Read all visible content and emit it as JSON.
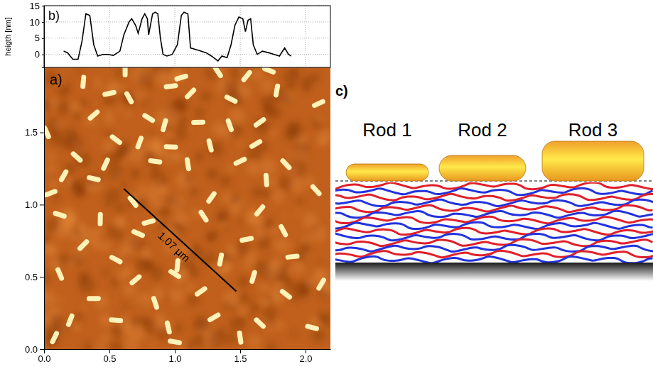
{
  "chart_data": [
    {
      "type": "scatter",
      "marker": "rod",
      "label": "a)",
      "color": "#fff2b8",
      "xlim": [
        0,
        2.19
      ],
      "ylim": [
        0,
        1.95
      ],
      "xticks": [
        {
          "value": 0,
          "label": "0.0"
        },
        {
          "value": 0.5,
          "label": "0.5"
        },
        {
          "value": 1,
          "label": "1.0"
        },
        {
          "value": 1.5,
          "label": "1.5"
        },
        {
          "value": 2,
          "label": "2.0"
        }
      ],
      "yticks": [
        {
          "value": 0,
          "label": "0.0"
        },
        {
          "value": 0.5,
          "label": "0.5"
        },
        {
          "value": 1,
          "label": "1.0"
        },
        {
          "value": 1.5,
          "label": "1.5"
        }
      ],
      "x": [
        0.62,
        1.05,
        1.33,
        1.55,
        1.72,
        0.3,
        0.5,
        0.65,
        1.12,
        1.43,
        1.78,
        0.97,
        0.02,
        0.38,
        0.8,
        0.92,
        1.18,
        1.42,
        1.65,
        0.55,
        0.73,
        0.97,
        1.27,
        1.62,
        0.25,
        0.47,
        0.85,
        1.1,
        1.5,
        1.85,
        0.15,
        0.38,
        1.7,
        0.05,
        0.68,
        1.28,
        0.12,
        0.43,
        0.8,
        1.22,
        1.65,
        0.72,
        1.02,
        1.55,
        1.83,
        0.3,
        0.55,
        1.35,
        1.9,
        0.12,
        0.7,
        1.0,
        1.6,
        0.38,
        0.85,
        1.2,
        1.85,
        0.2,
        0.55,
        0.95,
        1.3,
        1.65,
        0.08,
        1.0,
        1.5,
        2.1,
        2.08,
        2.12,
        2.05
      ],
      "y": [
        1.93,
        1.88,
        1.92,
        1.89,
        1.93,
        1.85,
        1.77,
        1.74,
        1.77,
        1.73,
        1.79,
        1.82,
        1.5,
        1.62,
        1.6,
        1.55,
        1.57,
        1.55,
        1.57,
        1.45,
        1.43,
        1.4,
        1.41,
        1.42,
        1.33,
        1.28,
        1.3,
        1.28,
        1.3,
        1.28,
        1.2,
        1.18,
        1.17,
        1.08,
        1.02,
        1.05,
        0.93,
        0.9,
        0.88,
        0.92,
        0.96,
        0.8,
        0.58,
        0.76,
        0.82,
        0.72,
        0.62,
        0.62,
        0.64,
        0.52,
        0.48,
        0.52,
        0.5,
        0.35,
        0.32,
        0.4,
        0.38,
        0.2,
        0.2,
        0.15,
        0.22,
        0.18,
        0.08,
        0.05,
        0.08,
        1.7,
        1.1,
        0.45,
        0.15
      ],
      "annotation": {
        "text": "1.07 µm",
        "x": [
          0.61,
          1.47
        ],
        "y": [
          1.11,
          0.4
        ]
      }
    },
    {
      "type": "line",
      "label": "b)",
      "ylabel": "heigth [nm]",
      "xlim": [
        0,
        2.19
      ],
      "ylim": [
        -4,
        15
      ],
      "xticks": [
        0,
        0.5,
        1,
        1.5,
        2
      ],
      "yticks": [
        0,
        5,
        10,
        15
      ],
      "grid": true,
      "tick_labels": "y",
      "x": [
        0.15,
        0.18,
        0.22,
        0.26,
        0.29,
        0.32,
        0.35,
        0.38,
        0.41,
        0.45,
        0.49,
        0.53,
        0.58,
        0.61,
        0.65,
        0.67,
        0.7,
        0.72,
        0.75,
        0.77,
        0.79,
        0.8,
        0.83,
        0.85,
        0.87,
        0.89,
        0.91,
        0.94,
        0.98,
        1.02,
        1.05,
        1.07,
        1.1,
        1.12,
        1.16,
        1.2,
        1.24,
        1.28,
        1.33,
        1.36,
        1.4,
        1.43,
        1.46,
        1.49,
        1.52,
        1.54,
        1.56,
        1.58,
        1.6,
        1.63,
        1.67,
        1.72,
        1.76,
        1.8,
        1.84,
        1.87,
        1.89
      ],
      "series": [
        {
          "color": "#000000",
          "values": [
            1,
            0.5,
            -1.5,
            -1.5,
            4,
            12.5,
            12,
            3,
            -0.5,
            0,
            0,
            -0.3,
            1,
            6,
            10,
            11,
            9,
            6.5,
            11,
            12.5,
            11,
            6,
            12.5,
            13,
            12.5,
            5,
            0,
            -0.5,
            0,
            3,
            12,
            13,
            12.5,
            2,
            1.5,
            1,
            0.5,
            -0.5,
            -2,
            -0.5,
            -1,
            3,
            9,
            11.5,
            11,
            7,
            10.5,
            11,
            3,
            0,
            1,
            0.5,
            0,
            -0.5,
            2,
            0,
            -0.5
          ]
        }
      ]
    }
  ],
  "diagram": {
    "label": "c)",
    "rods": [
      "Rod 1",
      "Rod 2",
      "Rod 3"
    ]
  }
}
